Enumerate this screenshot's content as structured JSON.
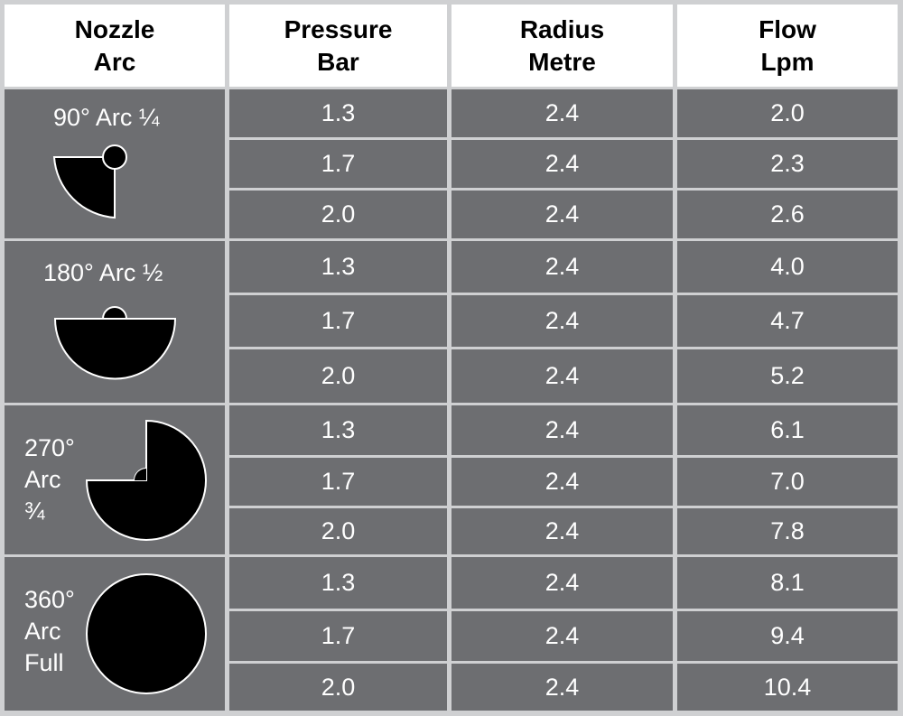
{
  "headers": [
    {
      "line1": "Nozzle",
      "line2": "Arc"
    },
    {
      "line1": "Pressure",
      "line2": "Bar"
    },
    {
      "line1": "Radius",
      "line2": "Metre"
    },
    {
      "line1": "Flow",
      "line2": "Lpm"
    }
  ],
  "groups": [
    {
      "label_lines": [
        "90° Arc ¼"
      ],
      "icon": "quarter-arc-icon",
      "rows": [
        {
          "pressure": "1.3",
          "radius": "2.4",
          "flow": "2.0"
        },
        {
          "pressure": "1.7",
          "radius": "2.4",
          "flow": "2.3"
        },
        {
          "pressure": "2.0",
          "radius": "2.4",
          "flow": "2.6"
        }
      ]
    },
    {
      "label_lines": [
        "180° Arc ½"
      ],
      "icon": "half-arc-icon",
      "rows": [
        {
          "pressure": "1.3",
          "radius": "2.4",
          "flow": "4.0"
        },
        {
          "pressure": "1.7",
          "radius": "2.4",
          "flow": "4.7"
        },
        {
          "pressure": "2.0",
          "radius": "2.4",
          "flow": "5.2"
        }
      ]
    },
    {
      "label_lines": [
        "270°",
        "Arc",
        "¾"
      ],
      "icon": "three-quarter-arc-icon",
      "rows": [
        {
          "pressure": "1.3",
          "radius": "2.4",
          "flow": "6.1"
        },
        {
          "pressure": "1.7",
          "radius": "2.4",
          "flow": "7.0"
        },
        {
          "pressure": "2.0",
          "radius": "2.4",
          "flow": "7.8"
        }
      ]
    },
    {
      "label_lines": [
        "360°",
        "Arc",
        "Full"
      ],
      "icon": "full-circle-arc-icon",
      "rows": [
        {
          "pressure": "1.3",
          "radius": "2.4",
          "flow": "8.1"
        },
        {
          "pressure": "1.7",
          "radius": "2.4",
          "flow": "9.4"
        },
        {
          "pressure": "2.0",
          "radius": "2.4",
          "flow": "10.4"
        }
      ]
    }
  ],
  "colors": {
    "cell": "#6d6e71",
    "grid": "#cfd0d2",
    "header_bg": "#ffffff",
    "icon_fill": "#000000",
    "icon_stroke": "#ffffff"
  }
}
